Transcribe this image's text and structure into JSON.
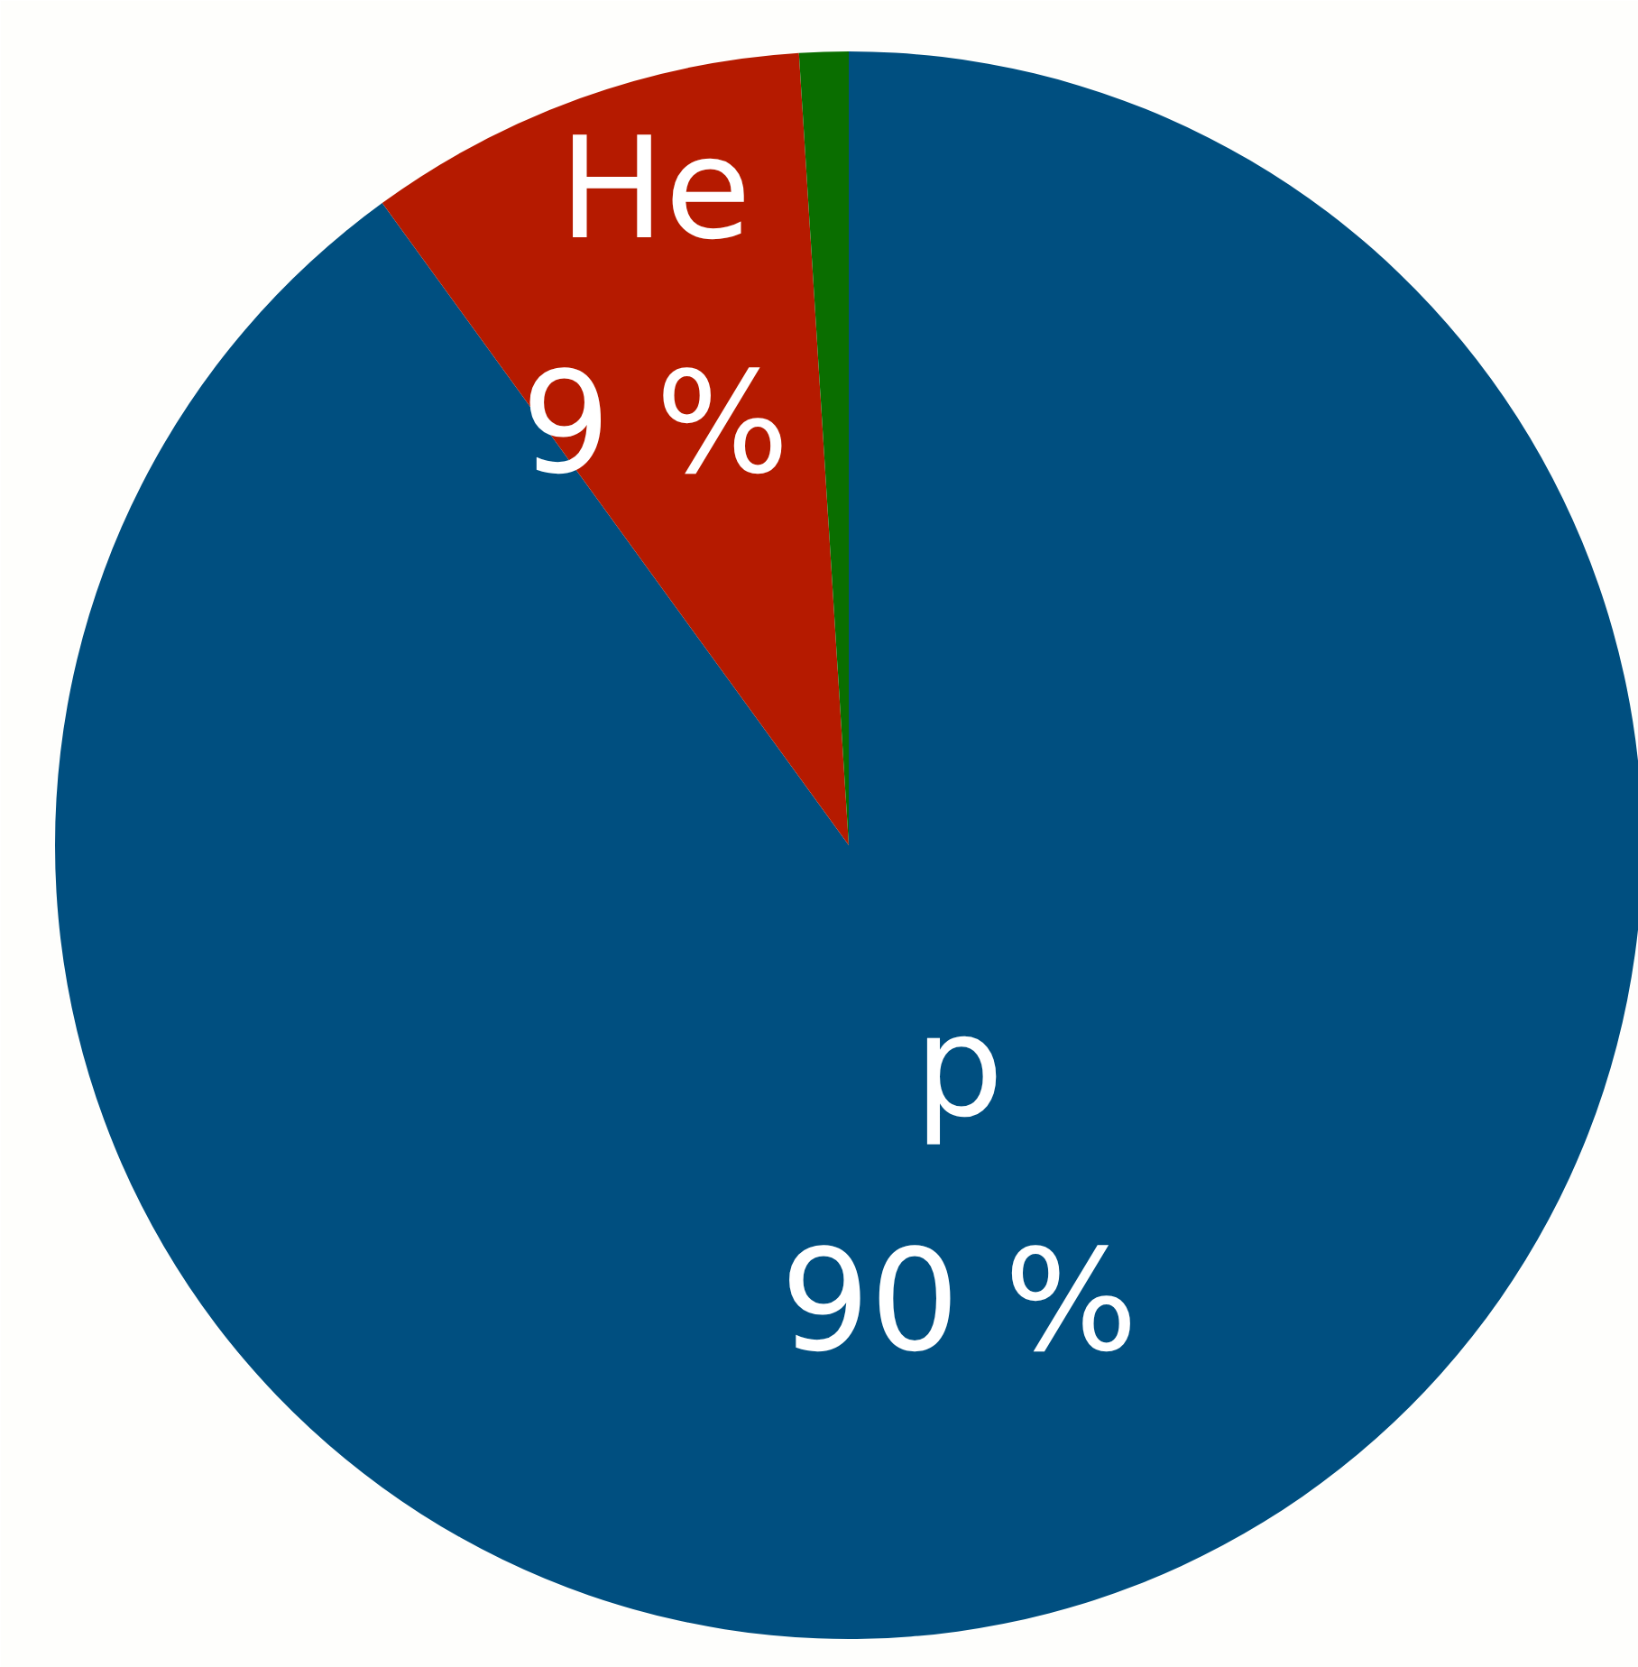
{
  "chart_data": {
    "type": "pie",
    "categories": [
      "p",
      "He",
      null
    ],
    "values": [
      90,
      9,
      1
    ],
    "colors": [
      "#004f80",
      "#b51a00",
      "#0a6e00"
    ],
    "value_labels": [
      "90 %",
      "9 %",
      null
    ]
  }
}
